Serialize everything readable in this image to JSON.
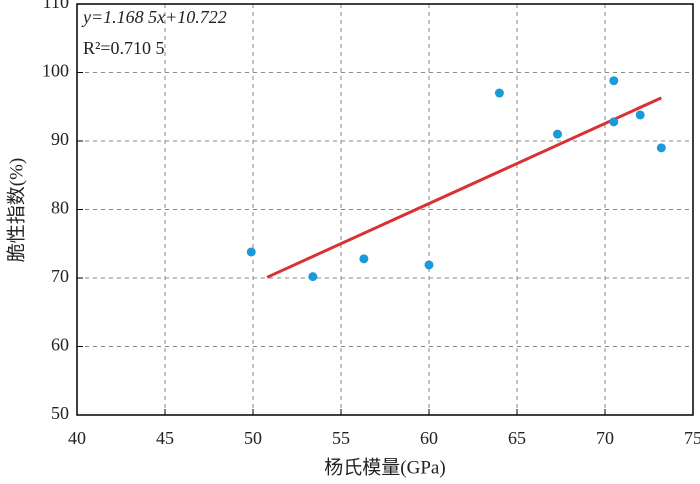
{
  "chart_data": {
    "type": "scatter",
    "x_label": "杨氏模量(GPa)",
    "y_label": "脆性指数(%)",
    "annotations": [
      "y=1.168 5x+10.722",
      "R²=0.710 5"
    ],
    "points": {
      "color": "#1b9ad8",
      "x": [
        49.9,
        53.4,
        56.3,
        60.0,
        64.0,
        67.3,
        70.5,
        70.5,
        72.0,
        73.2
      ],
      "values": [
        73.8,
        70.2,
        72.8,
        71.9,
        97.0,
        91.0,
        98.8,
        92.8,
        93.8,
        89.0
      ]
    },
    "fit": {
      "color": "#d83232",
      "x": [
        50.8,
        73.2
      ],
      "values": [
        70.1,
        96.3
      ]
    },
    "xlim": [
      40,
      75
    ],
    "xticks": [
      40,
      45,
      50,
      55,
      60,
      65,
      70,
      75
    ],
    "ylim": [
      50,
      110
    ],
    "yticks": [
      50,
      60,
      70,
      80,
      90,
      100,
      110
    ],
    "grid": true
  }
}
